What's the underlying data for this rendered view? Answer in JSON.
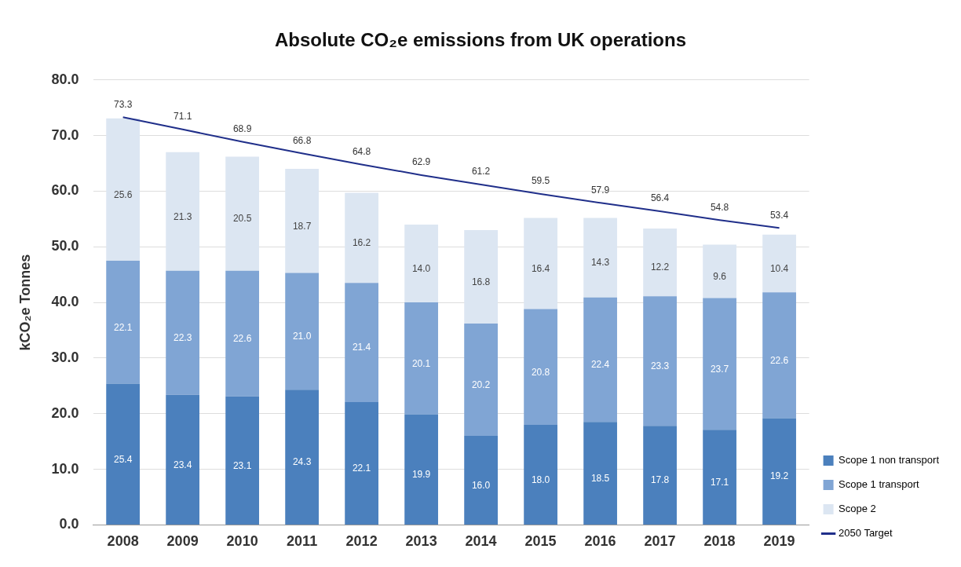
{
  "chart_data": {
    "type": "bar",
    "title": "Absolute CO₂e emissions from UK operations",
    "ylabel": "kCO₂e Tonnes",
    "categories": [
      "2008",
      "2009",
      "2010",
      "2011",
      "2012",
      "2013",
      "2014",
      "2015",
      "2016",
      "2017",
      "2018",
      "2019"
    ],
    "stacked": true,
    "ylim": [
      0,
      80
    ],
    "yticks": [
      {
        "value": 0,
        "label": "0.0"
      },
      {
        "value": 10,
        "label": "10.0"
      },
      {
        "value": 20,
        "label": "20.0"
      },
      {
        "value": 30,
        "label": "30.0"
      },
      {
        "value": 40,
        "label": "40.0"
      },
      {
        "value": 50,
        "label": "50.0"
      },
      {
        "value": 60,
        "label": "60.0"
      },
      {
        "value": 70,
        "label": "70.0"
      },
      {
        "value": 80,
        "label": "80.0"
      }
    ],
    "grid": "y",
    "legend": "bottom right",
    "series": [
      {
        "name": "Scope 1 non transport",
        "color": "#4b80bd",
        "values": [
          25.4,
          23.4,
          23.1,
          24.3,
          22.1,
          19.9,
          16.0,
          18.0,
          18.5,
          17.8,
          17.1,
          19.2
        ],
        "value_labels": [
          "25.4",
          "23.4",
          "23.1",
          "24.3",
          "22.1",
          "19.9",
          "16.0",
          "18.0",
          "18.5",
          "17.8",
          "17.1",
          "19.2"
        ]
      },
      {
        "name": "Scope 1 transport",
        "color": "#80a5d4",
        "values": [
          22.1,
          22.3,
          22.6,
          21.0,
          21.4,
          20.1,
          20.2,
          20.8,
          22.4,
          23.3,
          23.7,
          22.6
        ],
        "value_labels": [
          "22.1",
          "22.3",
          "22.6",
          "21.0",
          "21.4",
          "20.1",
          "20.2",
          "20.8",
          "22.4",
          "23.3",
          "23.7",
          "22.6"
        ]
      },
      {
        "name": "Scope 2",
        "color": "#dce6f2",
        "values": [
          25.6,
          21.3,
          20.5,
          18.7,
          16.2,
          14.0,
          16.8,
          16.4,
          14.3,
          12.2,
          9.6,
          10.4
        ],
        "value_labels": [
          "25.6",
          "21.3",
          "20.5",
          "18.7",
          "16.2",
          "14.0",
          "16.8",
          "16.4",
          "14.3",
          "12.2",
          "9.6",
          "10.4"
        ]
      },
      {
        "name": "2050 Target",
        "type": "line",
        "color": "#202f8a",
        "marker": "none",
        "values": [
          73.3,
          71.1,
          68.9,
          66.8,
          64.8,
          62.9,
          61.2,
          59.5,
          57.9,
          56.4,
          54.8,
          53.4
        ],
        "value_labels": [
          "73.3",
          "71.1",
          "68.9",
          "66.8",
          "64.8",
          "62.9",
          "61.2",
          "59.5",
          "57.9",
          "56.4",
          "54.8",
          "53.4"
        ]
      }
    ]
  }
}
